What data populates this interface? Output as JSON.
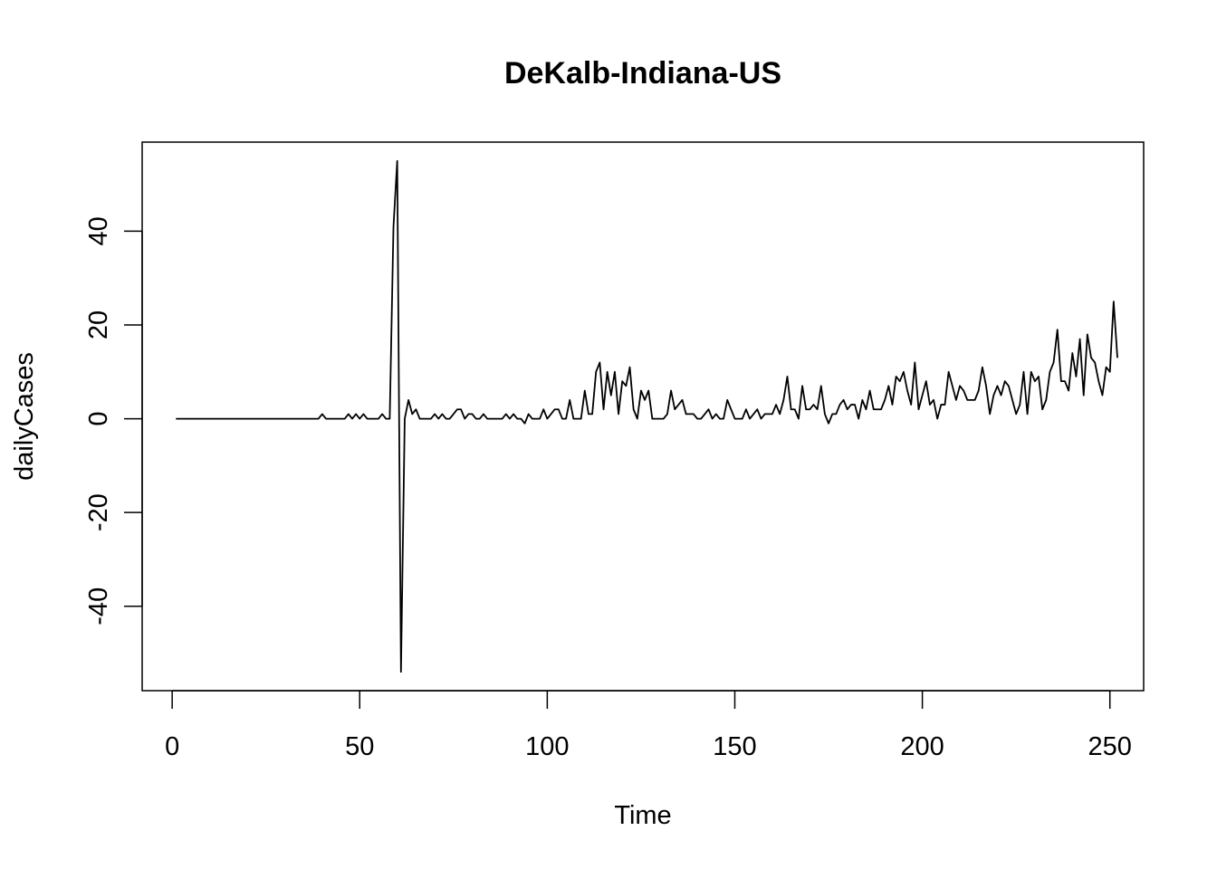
{
  "chart_data": {
    "type": "line",
    "title": "DeKalb-Indiana-US",
    "xlabel": "Time",
    "ylabel": "dailyCases",
    "xlim": [
      -8,
      259
    ],
    "ylim": [
      -58,
      59
    ],
    "x_ticks": [
      {
        "value": 0,
        "label": "0"
      },
      {
        "value": 50,
        "label": "50"
      },
      {
        "value": 100,
        "label": "100"
      },
      {
        "value": 150,
        "label": "150"
      },
      {
        "value": 200,
        "label": "200"
      },
      {
        "value": 250,
        "label": "250"
      }
    ],
    "y_ticks": [
      {
        "value": -40,
        "label": "-40"
      },
      {
        "value": -20,
        "label": "-20"
      },
      {
        "value": 0,
        "label": "0"
      },
      {
        "value": 20,
        "label": "20"
      },
      {
        "value": 40,
        "label": "40"
      }
    ],
    "grid": false,
    "series": [
      {
        "color": "#000000",
        "x_start": 1,
        "values": [
          0,
          0,
          0,
          0,
          0,
          0,
          0,
          0,
          0,
          0,
          0,
          0,
          0,
          0,
          0,
          0,
          0,
          0,
          0,
          0,
          0,
          0,
          0,
          0,
          0,
          0,
          0,
          0,
          0,
          0,
          0,
          0,
          0,
          0,
          0,
          0,
          0,
          0,
          0,
          1,
          0,
          0,
          0,
          0,
          0,
          0,
          1,
          0,
          1,
          0,
          1,
          0,
          0,
          0,
          0,
          1,
          0,
          0,
          41,
          55,
          -54,
          0,
          4,
          1,
          2,
          0,
          0,
          0,
          0,
          1,
          0,
          1,
          0,
          0,
          1,
          2,
          2,
          0,
          1,
          1,
          0,
          0,
          1,
          0,
          0,
          0,
          0,
          0,
          1,
          0,
          1,
          0,
          0,
          -1,
          1,
          0,
          0,
          0,
          2,
          0,
          1,
          2,
          2,
          0,
          0,
          4,
          0,
          0,
          0,
          6,
          1,
          1,
          10,
          12,
          2,
          10,
          5,
          10,
          1,
          8,
          7,
          11,
          2,
          0,
          6,
          4,
          6,
          0,
          0,
          0,
          0,
          1,
          6,
          2,
          3,
          4,
          1,
          1,
          1,
          0,
          0,
          1,
          2,
          0,
          1,
          0,
          0,
          4,
          2,
          0,
          0,
          0,
          2,
          0,
          1,
          2,
          0,
          1,
          1,
          1,
          3,
          1,
          4,
          9,
          2,
          2,
          0,
          7,
          2,
          2,
          3,
          2,
          7,
          1,
          -1,
          1,
          1,
          3,
          4,
          2,
          3,
          3,
          0,
          4,
          2,
          6,
          2,
          2,
          2,
          4,
          7,
          3,
          9,
          8,
          10,
          6,
          3,
          12,
          2,
          5,
          8,
          3,
          4,
          0,
          3,
          3,
          10,
          7,
          4,
          7,
          6,
          4,
          4,
          4,
          6,
          11,
          7,
          1,
          5,
          7,
          5,
          8,
          7,
          4,
          1,
          3,
          10,
          1,
          10,
          8,
          9,
          2,
          4,
          10,
          12,
          19,
          8,
          8,
          6,
          14,
          9,
          17,
          5,
          18,
          13,
          12,
          8,
          5,
          11,
          10,
          25,
          13
        ]
      }
    ]
  }
}
